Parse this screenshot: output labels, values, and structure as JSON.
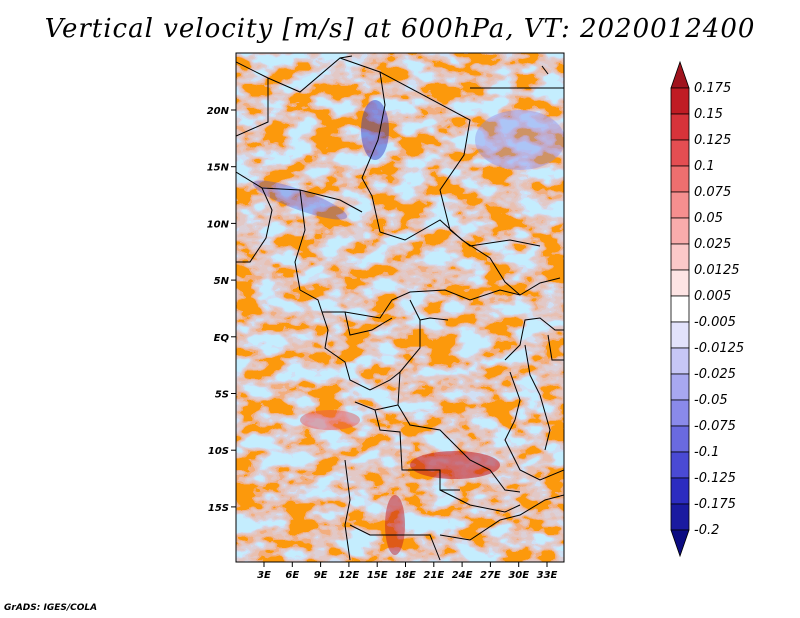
{
  "title": "Vertical velocity [m/s] at 600hPa, VT: 2020012400",
  "credit": "GrADS: IGES/COLA",
  "map": {
    "lat_labels": [
      "20N",
      "15N",
      "10N",
      "5N",
      "EQ",
      "5S",
      "10S",
      "15S"
    ],
    "lon_labels": [
      "3E",
      "6E",
      "9E",
      "12E",
      "15E",
      "18E",
      "21E",
      "24E",
      "27E",
      "30E",
      "33E"
    ]
  },
  "colorbar": {
    "labels": [
      "0.175",
      "0.15",
      "0.125",
      "0.1",
      "0.075",
      "0.05",
      "0.025",
      "0.0125",
      "0.005",
      "-0.005",
      "-0.0125",
      "-0.025",
      "-0.05",
      "-0.075",
      "-0.1",
      "-0.125",
      "-0.175",
      "-0.2"
    ],
    "colors": [
      "#a0141e",
      "#c01c24",
      "#d7333a",
      "#e44e52",
      "#ee6f6f",
      "#f58f8f",
      "#f9acac",
      "#fcc9c9",
      "#fde4e4",
      "#ffffff",
      "#e2e2fb",
      "#c6c6f6",
      "#a8a8f0",
      "#8a8aea",
      "#6a6ae0",
      "#4a4ad4",
      "#2c2cc0",
      "#1a1aa0",
      "#0c0c82"
    ]
  }
}
